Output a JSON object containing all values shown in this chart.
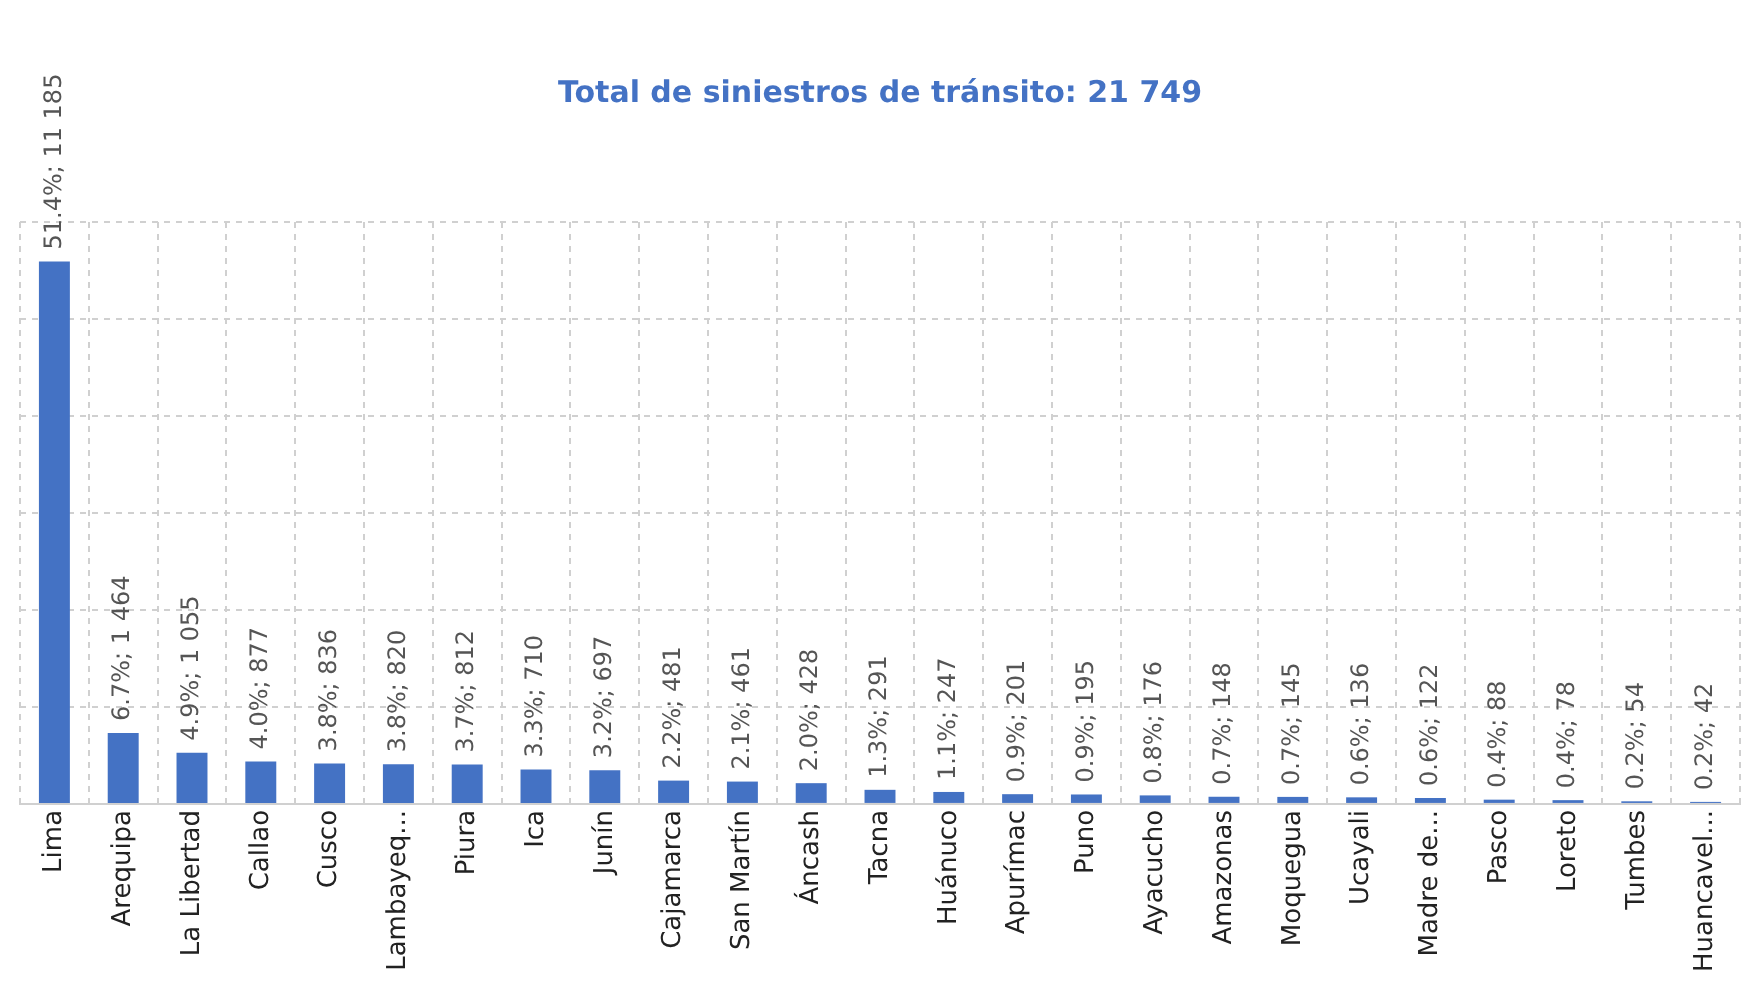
{
  "chart_data": {
    "type": "bar",
    "title": "Total de siniestros de tránsito: 21 749",
    "categories": [
      "Lima",
      "Arequipa",
      "La Libertad",
      "Callao",
      "Cusco",
      "Lambayeq...",
      "Piura",
      "Ica",
      "Junín",
      "Cajamarca",
      "San Martín",
      "Áncash",
      "Tacna",
      "Huánuco",
      "Apurímac",
      "Puno",
      "Ayacucho",
      "Amazonas",
      "Moquegua",
      "Ucayali",
      "Madre de...",
      "Pasco",
      "Loreto",
      "Tumbes",
      "Huancavel..."
    ],
    "values": [
      11185,
      1464,
      1055,
      877,
      836,
      820,
      812,
      710,
      697,
      481,
      461,
      428,
      291,
      247,
      201,
      195,
      176,
      148,
      145,
      136,
      122,
      88,
      78,
      54,
      42
    ],
    "value_labels": [
      "51.4%; 11 185",
      "6.7%; 1 464",
      "4.9%; 1 055",
      "4.0%; 877",
      "3.8%; 836",
      "3.8%; 820",
      "3.7%; 812",
      "3.3%; 710",
      "3.2%; 697",
      "2.2%; 481",
      "2.1%; 461",
      "2.0%; 428",
      "1.3%; 291",
      "1.1%; 247",
      "0.9%; 201",
      "0.9%; 195",
      "0.8%; 176",
      "0.7%; 148",
      "0.7%; 145",
      "0.6%; 136",
      "0.6%; 122",
      "0.4%; 88",
      "0.4%; 78",
      "0.2%; 54",
      "0.2%; 42"
    ],
    "color": "#4472c4",
    "ylim": [
      0,
      12000
    ],
    "yticks": [
      {
        "value": 0,
        "label": null
      },
      {
        "value": 2000,
        "label": null
      },
      {
        "value": 4000,
        "label": null
      },
      {
        "value": 6000,
        "label": null
      },
      {
        "value": 8000,
        "label": null
      },
      {
        "value": 10000,
        "label": null
      },
      {
        "value": 12000,
        "label": null
      }
    ],
    "tick_labels": "x",
    "grid": true,
    "legend": false
  }
}
